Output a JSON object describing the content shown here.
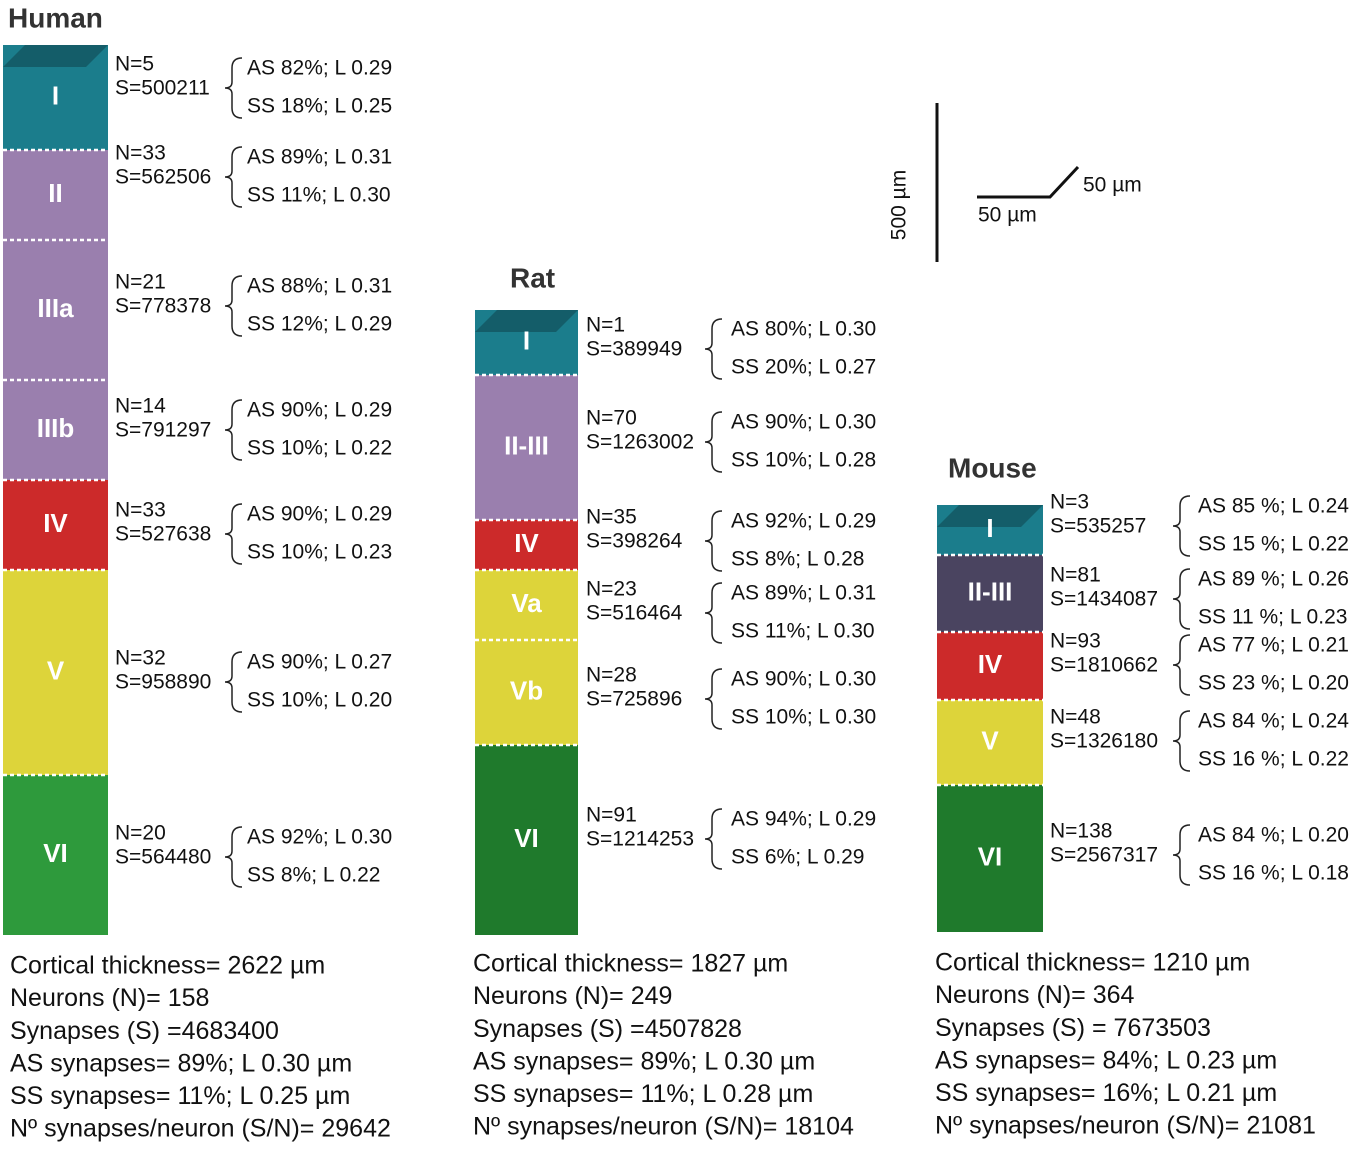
{
  "panels": [
    {
      "title": "Human",
      "layers": [
        {
          "label": "I",
          "n": "N=5",
          "s": "S=500211",
          "as": "AS 82%; L 0.29",
          "ss": "SS 18%; L 0.25"
        },
        {
          "label": "II",
          "n": "N=33",
          "s": "S=562506",
          "as": "AS 89%; L 0.31",
          "ss": "SS 11%; L 0.30"
        },
        {
          "label": "IIIa",
          "n": "N=21",
          "s": "S=778378",
          "as": "AS 88%; L 0.31",
          "ss": "SS 12%; L 0.29"
        },
        {
          "label": "IIIb",
          "n": "N=14",
          "s": "S=791297",
          "as": "AS 90%; L 0.29",
          "ss": "SS 10%; L 0.22"
        },
        {
          "label": "IV",
          "n": "N=33",
          "s": "S=527638",
          "as": "AS 90%; L 0.29",
          "ss": "SS 10%; L 0.23"
        },
        {
          "label": "V",
          "n": "N=32",
          "s": "S=958890",
          "as": "AS 90%; L 0.27",
          "ss": "SS 10%; L 0.20"
        },
        {
          "label": "VI",
          "n": "N=20",
          "s": "S=564480",
          "as": "AS 92%; L 0.30",
          "ss": "SS 8%; L 0.22"
        }
      ],
      "summary": [
        "Cortical thickness= 2622 µm",
        "Neurons (N)= 158",
        "Synapses (S) =4683400",
        "AS synapses= 89%; L 0.30 µm",
        "SS synapses= 11%; L 0.25 µm",
        "Nº synapses/neuron (S/N)= 29642"
      ]
    },
    {
      "title": "Rat",
      "layers": [
        {
          "label": "I",
          "n": "N=1",
          "s": "S=389949",
          "as": "AS 80%; L 0.30",
          "ss": "SS 20%; L 0.27"
        },
        {
          "label": "II-III",
          "n": "N=70",
          "s": "S=1263002",
          "as": "AS 90%; L 0.30",
          "ss": "SS 10%; L 0.28"
        },
        {
          "label": "IV",
          "n": "N=35",
          "s": "S=398264",
          "as": "AS 92%; L 0.29",
          "ss": "SS   8%; L 0.28"
        },
        {
          "label": "Va",
          "n": "N=23",
          "s": "S=516464",
          "as": "AS 89%; L 0.31",
          "ss": "SS 11%; L 0.30"
        },
        {
          "label": "Vb",
          "n": "N=28",
          "s": "S=725896",
          "as": "AS 90%; L 0.30",
          "ss": "SS 10%; L 0.30"
        },
        {
          "label": "VI",
          "n": "N=91",
          "s": "S=1214253",
          "as": "AS 94%; L 0.29",
          "ss": "SS   6%; L 0.29"
        }
      ],
      "summary": [
        "Cortical thickness= 1827 µm",
        "Neurons (N)= 249",
        "Synapses (S) =4507828",
        "AS synapses= 89%; L 0.30 µm",
        "SS synapses= 11%; L 0.28 µm",
        "Nº synapses/neuron (S/N)= 18104"
      ]
    },
    {
      "title": "Mouse",
      "layers": [
        {
          "label": "I",
          "n": "N=3",
          "s": "S=535257",
          "as": "AS 85 %; L 0.24",
          "ss": "SS 15 %; L 0.22"
        },
        {
          "label": "II-III",
          "n": "N=81",
          "s": "S=1434087",
          "as": "AS 89 %; L 0.26",
          "ss": "SS 11 %; L 0.23"
        },
        {
          "label": "IV",
          "n": "N=93",
          "s": "S=1810662",
          "as": "AS 77 %; L 0.21",
          "ss": "SS 23 %; L 0.20"
        },
        {
          "label": "V",
          "n": "N=48",
          "s": "S=1326180",
          "as": "AS 84 %; L 0.24",
          "ss": "SS 16 %; L 0.22"
        },
        {
          "label": "VI",
          "n": "N=138",
          "s": "S=2567317",
          "as": "AS 84 %; L 0.20",
          "ss": "SS 16 %; L 0.18"
        }
      ],
      "summary": [
        "Cortical thickness= 1210 µm",
        "Neurons (N)= 364",
        "Synapses (S) = 7673503",
        "AS synapses= 84%; L 0.23 µm",
        "SS synapses= 16%; L 0.21 µm",
        "Nº synapses/neuron (S/N)= 21081"
      ]
    }
  ],
  "scale_bar": {
    "vertical": "500 µm",
    "horizontal": "50 µm",
    "depth": "50 µm"
  }
}
